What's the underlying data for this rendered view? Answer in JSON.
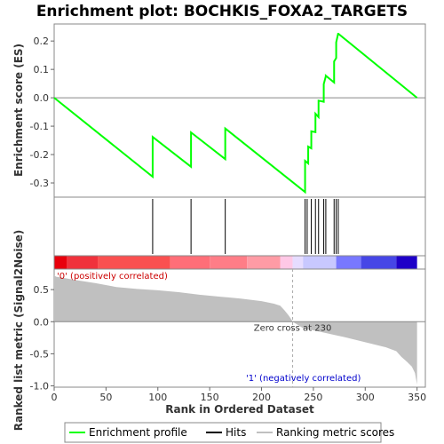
{
  "chart_data": {
    "type": "line",
    "title": "Enrichment plot: BOCHKIS_FOXA2_TARGETS",
    "es_panel": {
      "ylabel": "Enrichment score (ES)",
      "ylim": [
        -0.35,
        0.26
      ],
      "yticks": [
        "0.2",
        "0.1",
        "0.0",
        "-0.1",
        "-0.2",
        "-0.3"
      ],
      "ytick_values": [
        0.2,
        0.1,
        0.0,
        -0.1,
        -0.2,
        -0.3
      ],
      "line_color": "#00ff00",
      "x": [
        0,
        95,
        95,
        132,
        132,
        165,
        165,
        242,
        242,
        245,
        245,
        248,
        248,
        252,
        252,
        255,
        255,
        260,
        260,
        262,
        262,
        270,
        270,
        272,
        272,
        274,
        274,
        350
      ],
      "y": [
        0.0,
        -0.278,
        -0.138,
        -0.243,
        -0.122,
        -0.216,
        -0.108,
        -0.332,
        -0.222,
        -0.231,
        -0.172,
        -0.178,
        -0.118,
        -0.121,
        -0.056,
        -0.068,
        -0.01,
        -0.014,
        0.048,
        0.076,
        0.078,
        0.054,
        0.128,
        0.14,
        0.195,
        0.228,
        0.226,
        0.0
      ]
    },
    "hits": [
      95,
      132,
      165,
      242,
      244,
      248,
      252,
      255,
      260,
      262,
      270,
      272,
      274
    ],
    "heat_bar": [
      {
        "end": 12,
        "color": "#e8000c"
      },
      {
        "end": 42,
        "color": "#f0323c"
      },
      {
        "end": 112,
        "color": "#fa5050"
      },
      {
        "end": 150,
        "color": "#ff6e78"
      },
      {
        "end": 186,
        "color": "#ff7d87"
      },
      {
        "end": 218,
        "color": "#ff9ba5"
      },
      {
        "end": 230,
        "color": "#ffc8e6"
      },
      {
        "end": 240,
        "color": "#e6dcff"
      },
      {
        "end": 272,
        "color": "#c8c8ff"
      },
      {
        "end": 296,
        "color": "#7878ff"
      },
      {
        "end": 330,
        "color": "#4646e6"
      },
      {
        "end": 350,
        "color": "#1e00c8"
      }
    ],
    "metric_panel": {
      "ylabel": "Ranked list metric (Signal2Noise)",
      "ylim": [
        -1.02,
        0.82
      ],
      "yticks": [
        "0.5",
        "0.0",
        "-0.5",
        "-1.0"
      ],
      "ytick_values": [
        0.5,
        0.0,
        -0.5,
        -1.0
      ],
      "curve_x": [
        0,
        2,
        10,
        20,
        40,
        60,
        80,
        100,
        120,
        140,
        160,
        180,
        200,
        212,
        218,
        222,
        226,
        229,
        230,
        231,
        240,
        260,
        280,
        300,
        320,
        330,
        335,
        340,
        345,
        348,
        350
      ],
      "curve_y": [
        0.72,
        0.7,
        0.68,
        0.65,
        0.6,
        0.54,
        0.51,
        0.49,
        0.46,
        0.42,
        0.39,
        0.36,
        0.32,
        0.28,
        0.25,
        0.18,
        0.1,
        0.03,
        0.0,
        -0.01,
        -0.1,
        -0.17,
        -0.24,
        -0.32,
        -0.4,
        -0.46,
        -0.55,
        -0.62,
        -0.7,
        -0.8,
        -0.98
      ],
      "zero_cross_text": "Zero cross at 230",
      "zero_cross": 230,
      "pos_label": "'0' (positively correlated)",
      "neg_label": "'1' (negatively correlated)"
    },
    "xlabel": "Rank in Ordered Dataset",
    "xlim": [
      0,
      358
    ],
    "xticks": [
      "0",
      "50",
      "100",
      "150",
      "200",
      "250",
      "300",
      "350"
    ],
    "xtick_values": [
      0,
      50,
      100,
      150,
      200,
      250,
      300,
      350
    ],
    "legend": {
      "items": [
        {
          "label": "Enrichment profile",
          "color": "#00ff00"
        },
        {
          "label": "Hits",
          "color": "#000000"
        },
        {
          "label": "Ranking metric scores",
          "color": "#c0c0c0"
        }
      ]
    }
  }
}
